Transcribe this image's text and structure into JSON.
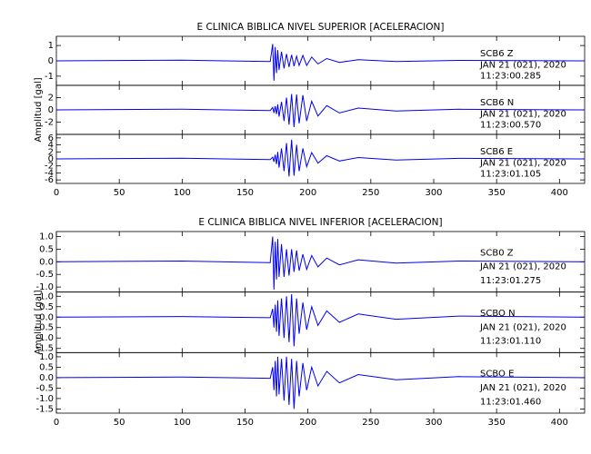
{
  "chart_data": [
    {
      "type": "line",
      "title": "E CLINICA BIBLICA NIVEL SUPERIOR [ACELERACION]",
      "y_label": "Amplitud [gal]",
      "xlim": [
        0,
        420
      ],
      "xticks": [
        0,
        50,
        100,
        150,
        200,
        250,
        300,
        350,
        400
      ],
      "panels": [
        {
          "station": "SCB6   Z",
          "date": "JAN 21 (021), 2020",
          "time": "11:23:00.285",
          "color": "#0000ee",
          "ylim": [
            -1.6,
            1.6
          ],
          "yticks": [
            -1,
            0,
            1
          ],
          "x": [
            0,
            100,
            170,
            172,
            173,
            174,
            175,
            176,
            177,
            179,
            181,
            183,
            185,
            187,
            189,
            191,
            193,
            196,
            199,
            203,
            208,
            215,
            225,
            240,
            270,
            320,
            420
          ],
          "values": [
            0,
            0.05,
            -0.05,
            1.1,
            -1.3,
            0.9,
            -0.8,
            0.7,
            -0.6,
            0.6,
            -0.5,
            0.45,
            -0.4,
            0.4,
            -0.35,
            0.3,
            -0.3,
            0.35,
            -0.3,
            0.25,
            -0.2,
            0.15,
            -0.1,
            0.08,
            -0.05,
            0.03,
            0
          ]
        },
        {
          "station": "SCB6   N",
          "date": "JAN 21 (021), 2020",
          "time": "11:23:00.570",
          "color": "#0000ee",
          "ylim": [
            -4,
            4
          ],
          "yticks": [
            -2,
            0,
            2
          ],
          "x": [
            0,
            100,
            170,
            172,
            173,
            174,
            175,
            176,
            177,
            179,
            181,
            183,
            185,
            187,
            189,
            191,
            193,
            196,
            199,
            203,
            208,
            215,
            225,
            240,
            270,
            320,
            420
          ],
          "values": [
            0,
            0.1,
            -0.1,
            0.4,
            -0.5,
            0.6,
            -0.7,
            0.9,
            -1.1,
            1.3,
            -1.8,
            2.0,
            -2.4,
            2.6,
            -2.8,
            2.5,
            -2.2,
            2.4,
            -1.8,
            1.4,
            -1.0,
            0.7,
            -0.5,
            0.3,
            -0.2,
            0.1,
            0
          ]
        },
        {
          "station": "SCB6   E",
          "date": "JAN 21 (021), 2020",
          "time": "11:23:01.105",
          "color": "#0000ee",
          "ylim": [
            -7,
            7
          ],
          "yticks": [
            -6,
            -4,
            -2,
            0,
            2,
            4,
            6
          ],
          "x": [
            0,
            100,
            170,
            172,
            173,
            174,
            175,
            176,
            177,
            179,
            181,
            183,
            185,
            187,
            189,
            191,
            193,
            196,
            199,
            203,
            208,
            215,
            225,
            240,
            270,
            320,
            420
          ],
          "values": [
            0,
            0.2,
            -0.2,
            0.5,
            -0.8,
            1.2,
            -1.5,
            2,
            -2.5,
            3,
            -3.5,
            4.5,
            -5,
            5.5,
            -4.8,
            4,
            -3.5,
            3,
            -2.2,
            1.8,
            -1.2,
            0.9,
            -0.6,
            0.4,
            -0.3,
            0.15,
            0
          ]
        }
      ]
    },
    {
      "type": "line",
      "title": "E CLINICA BIBLICA NIVEL INFERIOR [ACELERACION]",
      "y_label": "Amplitud [gal]",
      "xlim": [
        0,
        420
      ],
      "xticks": [
        0,
        50,
        100,
        150,
        200,
        250,
        300,
        350,
        400
      ],
      "panels": [
        {
          "station": "SCB0   Z",
          "date": "JAN 21 (021), 2020",
          "time": "11:23:01.275",
          "color": "#0000ee",
          "ylim": [
            -1.2,
            1.2
          ],
          "yticks": [
            {
              "value": -1,
              "label": "-1.0"
            },
            -0.5,
            {
              "value": 0,
              "label": "0.0"
            },
            0.5,
            {
              "value": 1,
              "label": "1.0"
            }
          ],
          "x": [
            0,
            100,
            170,
            172,
            173,
            174,
            175,
            176,
            177,
            179,
            181,
            183,
            185,
            187,
            189,
            191,
            193,
            196,
            199,
            203,
            208,
            215,
            225,
            240,
            270,
            320,
            420
          ],
          "values": [
            0,
            0.03,
            -0.03,
            1.0,
            -1.1,
            0.8,
            -0.7,
            0.9,
            -0.6,
            0.7,
            -0.6,
            0.5,
            -0.55,
            0.5,
            -0.4,
            0.45,
            -0.35,
            0.3,
            -0.3,
            0.25,
            -0.2,
            0.15,
            -0.12,
            0.08,
            -0.05,
            0.03,
            0
          ]
        },
        {
          "station": "SCBO   N",
          "date": "JAN 21 (021), 2020",
          "time": "11:23:01.110",
          "color": "#0000ee",
          "ylim": [
            -1.7,
            1.2
          ],
          "yticks": [
            -1.5,
            {
              "value": -1,
              "label": "-1.0"
            },
            -0.5,
            {
              "value": 0,
              "label": "0.0"
            },
            0.5,
            {
              "value": 1,
              "label": "1.0"
            }
          ],
          "x": [
            0,
            100,
            170,
            172,
            173,
            174,
            175,
            176,
            177,
            179,
            181,
            183,
            185,
            187,
            189,
            191,
            193,
            196,
            199,
            203,
            208,
            215,
            225,
            240,
            270,
            320,
            420
          ],
          "values": [
            0,
            0.03,
            -0.03,
            0.4,
            -0.5,
            0.6,
            -0.7,
            0.8,
            -0.9,
            0.9,
            -1.0,
            1.0,
            -1.2,
            1.1,
            -1.4,
            0.9,
            -0.8,
            0.7,
            -0.6,
            0.5,
            -0.4,
            0.3,
            -0.25,
            0.15,
            -0.1,
            0.05,
            0
          ]
        },
        {
          "station": "SCBO   E",
          "date": "JAN 21 (021), 2020",
          "time": "11:23:01.460",
          "color": "#0000ee",
          "ylim": [
            -1.7,
            1.2
          ],
          "yticks": [
            -1.5,
            {
              "value": -1,
              "label": "-1.0"
            },
            -0.5,
            {
              "value": 0,
              "label": "0.0"
            },
            0.5,
            {
              "value": 1,
              "label": "1.0"
            }
          ],
          "x": [
            0,
            100,
            170,
            172,
            173,
            174,
            175,
            176,
            177,
            179,
            181,
            183,
            185,
            187,
            189,
            191,
            193,
            196,
            199,
            203,
            208,
            215,
            225,
            240,
            270,
            320,
            420
          ],
          "values": [
            0,
            0.03,
            -0.03,
            0.5,
            -0.6,
            0.8,
            -0.9,
            1.0,
            -0.8,
            0.9,
            -1.1,
            1.0,
            -1.3,
            0.9,
            -1.5,
            0.8,
            -0.9,
            0.7,
            -0.6,
            0.5,
            -0.4,
            0.3,
            -0.25,
            0.15,
            -0.1,
            0.05,
            0
          ]
        }
      ]
    }
  ]
}
